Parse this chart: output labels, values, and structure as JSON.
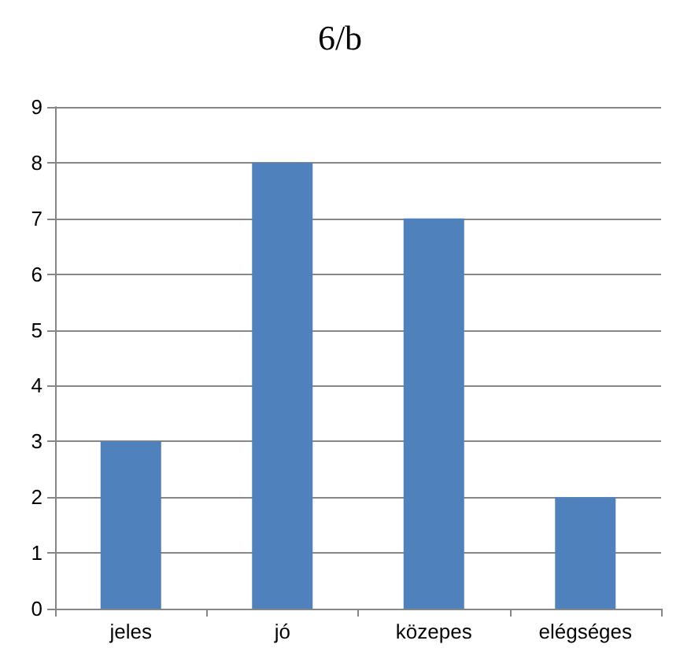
{
  "chart_data": {
    "type": "bar",
    "title": "6/b",
    "categories": [
      "jeles",
      "jó",
      "közepes",
      "elégséges"
    ],
    "values": [
      3,
      8,
      7,
      2
    ],
    "color": "#4f81bd",
    "ylim": [
      0,
      9
    ],
    "yticks": [
      0,
      1,
      2,
      3,
      4,
      5,
      6,
      7,
      8,
      9
    ],
    "grid": "y"
  }
}
